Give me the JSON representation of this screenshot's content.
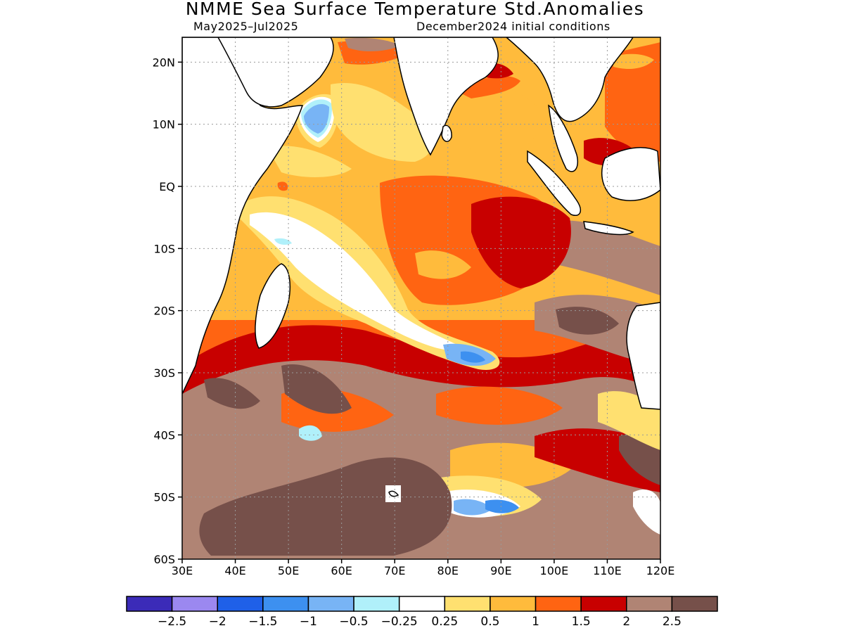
{
  "title": "NMME Sea Surface Temperature Std.Anomalies",
  "subtitle_left": "May2025–Jul2025",
  "subtitle_right": "December2024 initial conditions",
  "map": {
    "lon_range": [
      30,
      120
    ],
    "lat_range": [
      -60,
      24
    ],
    "lat_ticks": [
      {
        "value": 20,
        "label": "20N"
      },
      {
        "value": 10,
        "label": "10N"
      },
      {
        "value": 0,
        "label": "EQ"
      },
      {
        "value": -10,
        "label": "10S"
      },
      {
        "value": -20,
        "label": "20S"
      },
      {
        "value": -30,
        "label": "30S"
      },
      {
        "value": -40,
        "label": "40S"
      },
      {
        "value": -50,
        "label": "50S"
      },
      {
        "value": -60,
        "label": "60S"
      }
    ],
    "lon_ticks": [
      {
        "value": 30,
        "label": "30E"
      },
      {
        "value": 40,
        "label": "40E"
      },
      {
        "value": 50,
        "label": "50E"
      },
      {
        "value": 60,
        "label": "60E"
      },
      {
        "value": 70,
        "label": "70E"
      },
      {
        "value": 80,
        "label": "80E"
      },
      {
        "value": 90,
        "label": "90E"
      },
      {
        "value": 100,
        "label": "100E"
      },
      {
        "value": 110,
        "label": "110E"
      },
      {
        "value": 120,
        "label": "120E"
      }
    ],
    "grid": true
  },
  "colorbar": {
    "colors": [
      "#3b2bb8",
      "#9b88f0",
      "#1f60e8",
      "#3d90f0",
      "#78b4f5",
      "#b0f0fa",
      "#ffffff",
      "#ffe070",
      "#ffbb3c",
      "#ff6412",
      "#c80000",
      "#b08474",
      "#76504a"
    ],
    "labels": [
      "−2.5",
      "−2",
      "−1.5",
      "−1",
      "−0.5",
      "−0.25",
      "0.25",
      "0.5",
      "1",
      "1.5",
      "2",
      "2.5"
    ]
  }
}
